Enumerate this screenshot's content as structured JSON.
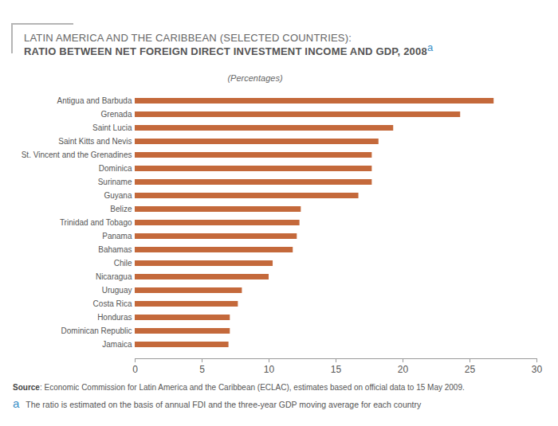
{
  "chart_data": {
    "type": "bar",
    "orientation": "horizontal",
    "title": "LATIN AMERICA AND THE CARIBBEAN (SELECTED COUNTRIES):",
    "subtitle": "RATIO BETWEEN NET FOREIGN DIRECT INVESTMENT INCOME AND GDP, 2008",
    "unit_label": "(Percentages)",
    "source": {
      "label": "Source",
      "text": ":  Economic Commission for Latin America and the Caribbean (ECLAC), estimates based on official data to 15 May 2009."
    },
    "footnote": {
      "marker": "a",
      "text": "The ratio is estimated on the basis of annual FDI and the three-year GDP moving average for each country"
    },
    "categories": [
      "Antigua and Barbuda",
      "Grenada",
      "Saint Lucia",
      "Saint Kitts and Nevis",
      "St. Vincent and the Grenadines",
      "Dominica",
      "Suriname",
      "Guyana",
      "Belize",
      "Trinidad and Tobago",
      "Panama",
      "Bahamas",
      "Chile",
      "Nicaragua",
      "Uruguay",
      "Costa Rica",
      "Honduras",
      "Dominican Republic",
      "Jamaica"
    ],
    "values": [
      26.8,
      24.3,
      19.3,
      18.2,
      17.7,
      17.7,
      17.7,
      16.7,
      12.4,
      12.3,
      12.1,
      11.8,
      10.3,
      10.0,
      8.0,
      7.7,
      7.1,
      7.1,
      7.0
    ],
    "color": "#c4693b",
    "xlim": [
      0,
      30
    ],
    "xticks": [
      0,
      5,
      10,
      15,
      20,
      25,
      30
    ],
    "grid": false
  }
}
